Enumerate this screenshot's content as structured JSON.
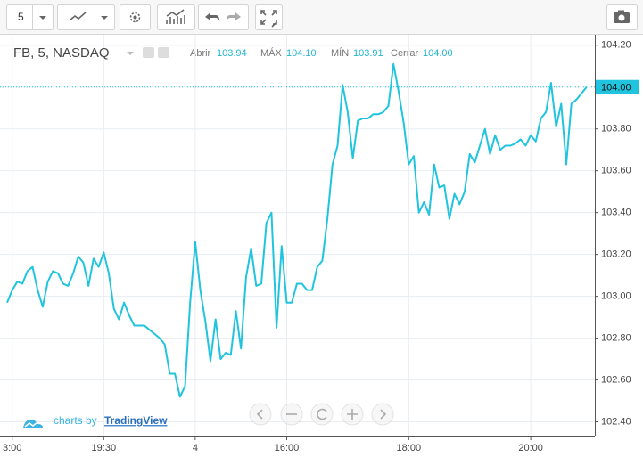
{
  "toolbar": {
    "interval": "5"
  },
  "chart_data": {
    "type": "line",
    "title": "FB, 5, NASDAQ",
    "ohlc": [
      {
        "label": "Abrir",
        "value": "103.94"
      },
      {
        "label": "MÁX",
        "value": "104.10"
      },
      {
        "label": "MÍN",
        "value": "103.91"
      },
      {
        "label": "Cerrar",
        "value": "104.00"
      }
    ],
    "categories": [
      null,
      "3:00",
      null,
      null,
      null,
      null,
      null,
      null,
      null,
      null,
      null,
      null,
      null,
      null,
      null,
      null,
      null,
      null,
      null,
      "19:30",
      null,
      null,
      null,
      null,
      null,
      null,
      null,
      null,
      null,
      null,
      null,
      null,
      null,
      null,
      null,
      null,
      null,
      "4",
      null,
      null,
      null,
      null,
      null,
      null,
      null,
      null,
      null,
      null,
      null,
      null,
      null,
      null,
      null,
      null,
      null,
      "16:00",
      null,
      null,
      null,
      null,
      null,
      null,
      null,
      null,
      null,
      null,
      null,
      null,
      null,
      null,
      null,
      null,
      null,
      null,
      null,
      null,
      null,
      null,
      null,
      "18:00",
      null,
      null,
      null,
      null,
      null,
      null,
      null,
      null,
      null,
      null,
      null,
      null,
      null,
      null,
      null,
      null,
      null,
      null,
      null,
      null,
      null,
      null,
      null,
      "20:00",
      null,
      null,
      null,
      null,
      null,
      null,
      null,
      null,
      null,
      null,
      null
    ],
    "series": [
      {
        "name": "FB",
        "color": "#21c4de",
        "values": [
          102.97,
          103.03,
          103.07,
          103.06,
          103.12,
          103.14,
          103.03,
          102.95,
          103.07,
          103.12,
          103.11,
          103.06,
          103.05,
          103.11,
          103.19,
          103.16,
          103.05,
          103.18,
          103.14,
          103.21,
          103.11,
          102.94,
          102.89,
          102.97,
          102.91,
          102.86,
          102.86,
          102.86,
          102.84,
          102.82,
          102.8,
          102.77,
          102.63,
          102.63,
          102.52,
          102.57,
          102.97,
          103.26,
          103.03,
          102.88,
          102.69,
          102.89,
          102.7,
          102.73,
          102.72,
          102.93,
          102.75,
          103.09,
          103.23,
          103.05,
          103.06,
          103.35,
          103.4,
          102.85,
          103.24,
          102.97,
          102.97,
          103.06,
          103.06,
          103.03,
          103.03,
          103.14,
          103.17,
          103.37,
          103.63,
          103.72,
          104.01,
          103.88,
          103.66,
          103.84,
          103.85,
          103.85,
          103.87,
          103.87,
          103.88,
          103.91,
          104.11,
          103.98,
          103.83,
          103.63,
          103.67,
          103.4,
          103.45,
          103.39,
          103.63,
          103.52,
          103.53,
          103.37,
          103.49,
          103.44,
          103.5,
          103.68,
          103.64,
          103.72,
          103.8,
          103.68,
          103.77,
          103.7,
          103.72,
          103.72,
          103.73,
          103.75,
          103.72,
          103.77,
          103.74,
          103.85,
          103.88,
          104.02,
          103.81,
          103.92,
          103.63,
          103.92,
          103.94,
          103.97,
          104.0
        ]
      }
    ],
    "ylim": [
      102.33,
      104.25
    ],
    "yticks": [
      {
        "value": 102.4,
        "label": "102.40"
      },
      {
        "value": 102.6,
        "label": "102.60"
      },
      {
        "value": 102.8,
        "label": "102.80"
      },
      {
        "value": 103,
        "label": "103.00"
      },
      {
        "value": 103.2,
        "label": "103.20"
      },
      {
        "value": 103.4,
        "label": "103.40"
      },
      {
        "value": 103.6,
        "label": "103.60"
      },
      {
        "value": 103.8,
        "label": "103.80"
      },
      {
        "value": 104,
        "label": "104.00"
      },
      {
        "value": 104.2,
        "label": "104.20"
      }
    ],
    "grid": true
  },
  "branding": {
    "prefix": "charts by",
    "link": "TradingView"
  }
}
